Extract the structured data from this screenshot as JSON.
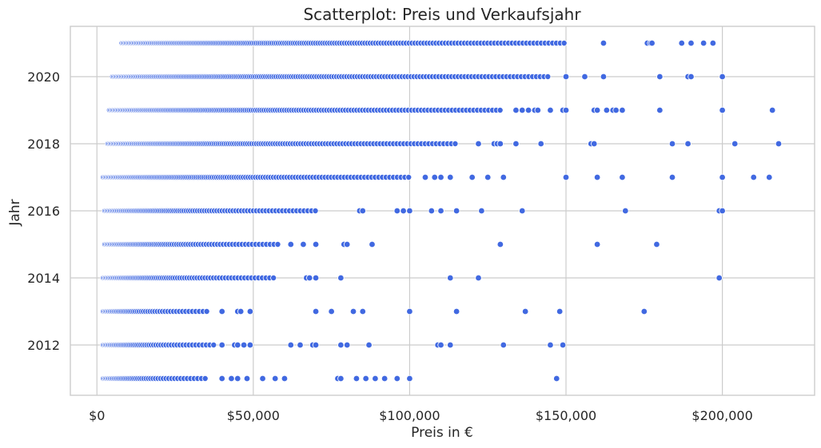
{
  "chart_data": {
    "type": "scatter",
    "title": "Scatterplot: Preis und Verkaufsjahr",
    "xlabel": "Preis in €",
    "ylabel": "Jahr",
    "xlim": [
      -8500,
      229500
    ],
    "ylim": [
      2010.5,
      2021.5
    ],
    "x_ticks": [
      0,
      50000,
      100000,
      150000,
      200000
    ],
    "x_tick_labels": [
      "$0",
      "$50,000",
      "$100,000",
      "$150,000",
      "$200,000"
    ],
    "y_ticks": [
      2012,
      2014,
      2016,
      2018,
      2020
    ],
    "y_tick_labels": [
      "2012",
      "2014",
      "2016",
      "2018",
      "2020"
    ],
    "grid": true,
    "point_color": "#4169e1",
    "series": [
      {
        "rows": [
          {
            "year": 2021,
            "dense_range": [
              8000,
              150000
            ],
            "outliers": [
              162000,
              176000,
              177000,
              177500,
              187000,
              190000,
              194000,
              197000
            ]
          },
          {
            "year": 2020,
            "dense_range": [
              5000,
              145000
            ],
            "outliers": [
              150000,
              156000,
              162000,
              180000,
              189000,
              190000,
              200000
            ]
          },
          {
            "year": 2019,
            "dense_range": [
              4000,
              130000
            ],
            "outliers": [
              134000,
              136000,
              138000,
              140000,
              141000,
              145000,
              149000,
              150000,
              159000,
              160000,
              163000,
              165000,
              166000,
              168000,
              180000,
              200000,
              216000
            ]
          },
          {
            "year": 2018,
            "dense_range": [
              3500,
              115000
            ],
            "outliers": [
              122000,
              127000,
              128000,
              129000,
              134000,
              142000,
              158000,
              159000,
              184000,
              189000,
              204000,
              218000
            ]
          },
          {
            "year": 2017,
            "dense_range": [
              2000,
              100000
            ],
            "outliers": [
              105000,
              108000,
              110000,
              113000,
              120000,
              125000,
              130000,
              150000,
              160000,
              168000,
              184000,
              200000,
              210000,
              215000
            ]
          },
          {
            "year": 2016,
            "dense_range": [
              2500,
              70000
            ],
            "outliers": [
              84000,
              85000,
              96000,
              98000,
              100000,
              107000,
              110000,
              115000,
              123000,
              136000,
              169000,
              199000,
              200000
            ]
          },
          {
            "year": 2015,
            "dense_range": [
              2500,
              58000
            ],
            "outliers": [
              62000,
              66000,
              70000,
              79000,
              80000,
              88000,
              129000,
              160000,
              179000
            ]
          },
          {
            "year": 2014,
            "dense_range": [
              2000,
              57000
            ],
            "outliers": [
              67000,
              68000,
              70000,
              78000,
              113000,
              122000,
              199000
            ]
          },
          {
            "year": 2013,
            "dense_range": [
              2000,
              36000
            ],
            "outliers": [
              40000,
              45000,
              46000,
              49000,
              70000,
              75000,
              82000,
              85000,
              100000,
              115000,
              137000,
              148000,
              175000
            ]
          },
          {
            "year": 2012,
            "dense_range": [
              2000,
              38000
            ],
            "outliers": [
              40000,
              44000,
              45000,
              47000,
              49000,
              62000,
              65000,
              69000,
              70000,
              78000,
              80000,
              87000,
              109000,
              110000,
              113000,
              130000,
              145000,
              149000
            ]
          },
          {
            "year": 2011,
            "dense_range": [
              2000,
              35000
            ],
            "outliers": [
              40000,
              43000,
              45000,
              48000,
              53000,
              57000,
              60000,
              77000,
              78000,
              83000,
              86000,
              89000,
              92000,
              96000,
              100000,
              147000
            ]
          }
        ]
      }
    ]
  }
}
